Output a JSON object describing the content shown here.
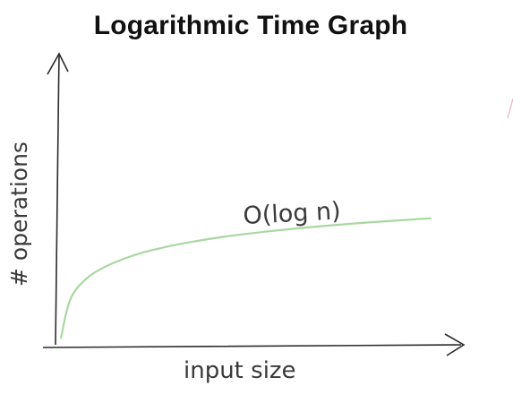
{
  "chart_data": {
    "type": "line",
    "title": "Logarithmic Time Graph",
    "xlabel": "input size",
    "ylabel": "# operations",
    "grid": false,
    "series": [
      {
        "name": "O(log n)",
        "x": [
          1,
          5,
          10,
          20,
          40,
          60,
          80,
          100,
          130,
          160,
          200
        ],
        "y": [
          0.0,
          1.6,
          2.3,
          3.0,
          3.69,
          4.09,
          4.38,
          4.61,
          4.87,
          5.08,
          5.3
        ]
      }
    ],
    "xlim": [
      0,
      215
    ],
    "ylim": [
      -0.3,
      12.5
    ],
    "colors": {
      "curve": "#a8d8a0",
      "axes": "#2b2b2b",
      "annotation": "#3a3a3a"
    }
  }
}
